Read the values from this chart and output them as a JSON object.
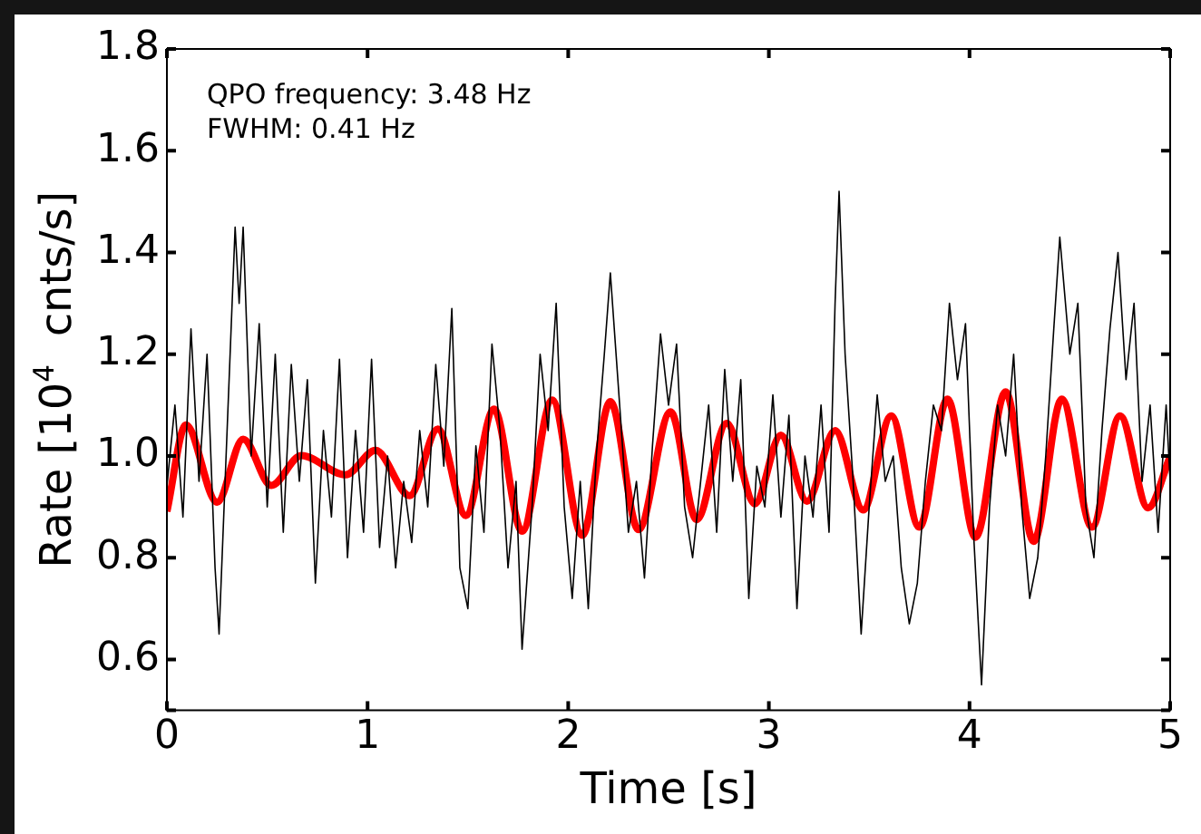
{
  "chart_data": {
    "type": "line",
    "xlabel": "Time [s]",
    "ylabel": "Rate [10$^{4}$  cnts/s]",
    "annotations": [
      "QPO frequency: 3.48 Hz",
      "FWHM: 0.41 Hz"
    ],
    "xlim": [
      0,
      5
    ],
    "xticks": [
      0,
      1,
      2,
      3,
      4,
      5
    ],
    "ylim": [
      0.5,
      1.8
    ],
    "yticks": [
      {
        "value": 0.5,
        "label": null
      },
      0.6,
      0.8,
      {
        "value": 1.0,
        "label": "1.0"
      },
      1.2,
      1.4,
      1.6,
      1.8
    ],
    "grid": false,
    "legend": false,
    "marker": "none",
    "series": [
      {
        "color": "#000000",
        "x": [
          0,
          0.04,
          0.08,
          0.12,
          0.16,
          0.2,
          0.24,
          0.26,
          0.3,
          0.34,
          0.36,
          0.38,
          0.42,
          0.46,
          0.5,
          0.54,
          0.58,
          0.62,
          0.66,
          0.7,
          0.74,
          0.78,
          0.82,
          0.86,
          0.9,
          0.94,
          0.98,
          1.02,
          1.06,
          1.1,
          1.14,
          1.18,
          1.22,
          1.26,
          1.3,
          1.34,
          1.38,
          1.42,
          1.46,
          1.5,
          1.54,
          1.58,
          1.62,
          1.66,
          1.7,
          1.74,
          1.77,
          1.82,
          1.86,
          1.9,
          1.94,
          1.98,
          2.02,
          2.06,
          2.1,
          2.14,
          2.18,
          2.21,
          2.26,
          2.3,
          2.34,
          2.38,
          2.42,
          2.46,
          2.5,
          2.54,
          2.58,
          2.62,
          2.66,
          2.7,
          2.74,
          2.78,
          2.82,
          2.86,
          2.9,
          2.94,
          2.98,
          3.02,
          3.06,
          3.1,
          3.14,
          3.18,
          3.22,
          3.26,
          3.3,
          3.33,
          3.35,
          3.38,
          3.42,
          3.46,
          3.5,
          3.54,
          3.58,
          3.62,
          3.66,
          3.7,
          3.74,
          3.78,
          3.82,
          3.86,
          3.9,
          3.94,
          3.98,
          4.02,
          4.06,
          4.1,
          4.14,
          4.18,
          4.22,
          4.26,
          4.3,
          4.34,
          4.38,
          4.42,
          4.45,
          4.5,
          4.54,
          4.58,
          4.62,
          4.66,
          4.7,
          4.74,
          4.78,
          4.82,
          4.86,
          4.9,
          4.94,
          4.98,
          5.0
        ],
        "values": [
          0.94,
          1.1,
          0.88,
          1.25,
          0.95,
          1.2,
          0.78,
          0.65,
          1.05,
          1.45,
          1.3,
          1.45,
          1.0,
          1.26,
          0.9,
          1.2,
          0.85,
          1.18,
          0.95,
          1.15,
          0.75,
          1.05,
          0.88,
          1.19,
          0.8,
          1.05,
          0.85,
          1.19,
          0.82,
          1.0,
          0.78,
          0.95,
          0.83,
          1.05,
          0.9,
          1.18,
          0.98,
          1.29,
          0.78,
          0.7,
          1.02,
          0.85,
          1.22,
          1.05,
          0.78,
          0.95,
          0.62,
          0.9,
          1.2,
          1.05,
          1.3,
          0.9,
          0.72,
          0.95,
          0.7,
          1.0,
          1.2,
          1.36,
          1.08,
          0.85,
          0.95,
          0.76,
          1.02,
          1.24,
          1.1,
          1.22,
          0.9,
          0.8,
          0.95,
          1.1,
          0.85,
          1.17,
          0.95,
          1.15,
          0.72,
          0.98,
          0.9,
          1.12,
          0.88,
          1.08,
          0.7,
          1.0,
          0.88,
          1.1,
          0.85,
          1.3,
          1.52,
          1.2,
          0.95,
          0.65,
          0.9,
          1.12,
          0.95,
          1.0,
          0.78,
          0.67,
          0.75,
          0.95,
          1.1,
          1.05,
          1.3,
          1.15,
          1.26,
          0.85,
          0.55,
          0.9,
          1.1,
          1.0,
          1.2,
          0.9,
          0.72,
          0.8,
          1.0,
          1.25,
          1.43,
          1.2,
          1.3,
          0.9,
          0.8,
          1.05,
          1.25,
          1.4,
          1.15,
          1.3,
          0.95,
          1.1,
          0.85,
          1.1,
          0.95
        ]
      },
      {
        "color": "#ff0000",
        "x": [
          0,
          0.095,
          0.25,
          0.38,
          0.52,
          0.67,
          0.89,
          1.04,
          1.21,
          1.35,
          1.49,
          1.63,
          1.77,
          1.92,
          2.07,
          2.21,
          2.35,
          2.51,
          2.64,
          2.79,
          2.93,
          3.06,
          3.19,
          3.33,
          3.47,
          3.61,
          3.75,
          3.89,
          4.03,
          4.18,
          4.32,
          4.46,
          4.61,
          4.75,
          4.89,
          5.0
        ],
        "values": [
          0.891,
          1.061,
          0.909,
          1.033,
          0.942,
          1.001,
          0.963,
          1.011,
          0.922,
          1.053,
          0.883,
          1.092,
          0.852,
          1.11,
          0.844,
          1.107,
          0.855,
          1.087,
          0.875,
          1.064,
          0.906,
          1.041,
          0.911,
          1.05,
          0.894,
          1.079,
          0.86,
          1.112,
          0.84,
          1.126,
          0.832,
          1.112,
          0.86,
          1.079,
          0.898,
          0.999
        ]
      }
    ]
  }
}
